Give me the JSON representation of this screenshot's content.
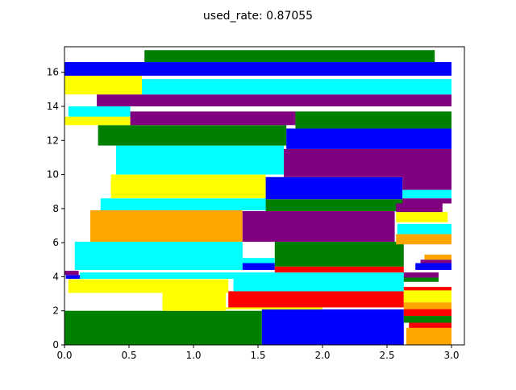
{
  "chart_data": {
    "type": "bar",
    "title": "used_rate: 0.87055",
    "xlabel": "",
    "ylabel": "",
    "xlim": [
      0,
      3.1
    ],
    "ylim": [
      0,
      17.5
    ],
    "grid": false,
    "x_ticks": [
      0.0,
      0.5,
      1.0,
      1.5,
      2.0,
      2.5,
      3.0
    ],
    "x_tick_labels": [
      "0.0",
      "0.5",
      "1.0",
      "1.5",
      "2.0",
      "2.5",
      "3.0"
    ],
    "y_ticks": [
      0,
      2,
      4,
      6,
      8,
      10,
      12,
      14,
      16
    ],
    "y_tick_labels": [
      "0",
      "2",
      "4",
      "6",
      "8",
      "10",
      "12",
      "14",
      "16"
    ],
    "colors": {
      "green": "#008000",
      "blue": "#0000ff",
      "yellow": "#ffff00",
      "cyan": "#00ffff",
      "purple": "#800080",
      "orange": "#ffa500",
      "red": "#ff0000"
    },
    "rectangles": [
      {
        "x0": 0.0,
        "x1": 1.53,
        "y0": 0.0,
        "y1": 2.0,
        "color": "green"
      },
      {
        "x0": 1.53,
        "x1": 2.63,
        "y0": 0.0,
        "y1": 2.08,
        "color": "blue"
      },
      {
        "x0": 0.76,
        "x1": 1.25,
        "y0": 2.0,
        "y1": 3.05,
        "color": "yellow"
      },
      {
        "x0": 1.25,
        "x1": 2.0,
        "y0": 2.08,
        "y1": 2.2,
        "color": "yellow"
      },
      {
        "x0": 1.27,
        "x1": 2.63,
        "y0": 2.2,
        "y1": 3.15,
        "color": "red"
      },
      {
        "x0": 0.03,
        "x1": 1.27,
        "y0": 3.05,
        "y1": 3.85,
        "color": "yellow"
      },
      {
        "x0": 1.31,
        "x1": 2.63,
        "y0": 3.15,
        "y1": 3.88,
        "color": "cyan"
      },
      {
        "x0": 0.12,
        "x1": 2.63,
        "y0": 3.88,
        "y1": 4.25,
        "color": "cyan"
      },
      {
        "x0": 0.01,
        "x1": 0.12,
        "y0": 3.88,
        "y1": 4.1,
        "color": "blue"
      },
      {
        "x0": 0.0,
        "x1": 0.11,
        "y0": 4.1,
        "y1": 4.35,
        "color": "purple"
      },
      {
        "x0": 0.08,
        "x1": 1.38,
        "y0": 4.4,
        "y1": 6.05,
        "color": "cyan"
      },
      {
        "x0": 1.38,
        "x1": 1.63,
        "y0": 4.4,
        "y1": 4.8,
        "color": "blue"
      },
      {
        "x0": 1.63,
        "x1": 2.63,
        "y0": 4.25,
        "y1": 4.6,
        "color": "red"
      },
      {
        "x0": 1.63,
        "x1": 2.63,
        "y0": 4.6,
        "y1": 6.05,
        "color": "green"
      },
      {
        "x0": 1.38,
        "x1": 1.63,
        "y0": 4.8,
        "y1": 5.1,
        "color": "cyan"
      },
      {
        "x0": 0.2,
        "x1": 1.38,
        "y0": 6.05,
        "y1": 7.9,
        "color": "orange"
      },
      {
        "x0": 1.38,
        "x1": 2.56,
        "y0": 6.05,
        "y1": 7.85,
        "color": "purple"
      },
      {
        "x0": 0.28,
        "x1": 1.56,
        "y0": 7.9,
        "y1": 8.6,
        "color": "cyan"
      },
      {
        "x0": 1.56,
        "x1": 2.63,
        "y0": 7.85,
        "y1": 8.55,
        "color": "green"
      },
      {
        "x0": 0.36,
        "x1": 1.56,
        "y0": 8.6,
        "y1": 10.0,
        "color": "yellow"
      },
      {
        "x0": 1.56,
        "x1": 2.62,
        "y0": 8.55,
        "y1": 9.85,
        "color": "blue"
      },
      {
        "x0": 0.4,
        "x1": 1.7,
        "y0": 10.0,
        "y1": 11.7,
        "color": "cyan"
      },
      {
        "x0": 1.7,
        "x1": 3.0,
        "y0": 9.85,
        "y1": 11.5,
        "color": "purple"
      },
      {
        "x0": 0.26,
        "x1": 1.72,
        "y0": 11.7,
        "y1": 12.9,
        "color": "green"
      },
      {
        "x0": 1.72,
        "x1": 3.0,
        "y0": 11.5,
        "y1": 12.7,
        "color": "blue"
      },
      {
        "x0": 1.79,
        "x1": 3.0,
        "y0": 12.7,
        "y1": 13.7,
        "color": "green"
      },
      {
        "x0": 0.0,
        "x1": 0.51,
        "y0": 12.9,
        "y1": 13.4,
        "color": "yellow"
      },
      {
        "x0": 0.51,
        "x1": 1.79,
        "y0": 12.9,
        "y1": 13.7,
        "color": "purple"
      },
      {
        "x0": 0.03,
        "x1": 0.51,
        "y0": 13.4,
        "y1": 14.0,
        "color": "cyan"
      },
      {
        "x0": 0.25,
        "x1": 3.0,
        "y0": 14.0,
        "y1": 14.7,
        "color": "purple"
      },
      {
        "x0": 0.0,
        "x1": 0.6,
        "y0": 14.7,
        "y1": 15.8,
        "color": "yellow"
      },
      {
        "x0": 0.6,
        "x1": 3.0,
        "y0": 14.7,
        "y1": 15.6,
        "color": "cyan"
      },
      {
        "x0": 0.0,
        "x1": 3.0,
        "y0": 15.8,
        "y1": 16.6,
        "color": "blue"
      },
      {
        "x0": 0.62,
        "x1": 2.87,
        "y0": 16.6,
        "y1": 17.3,
        "color": "green"
      },
      {
        "x0": 2.65,
        "x1": 3.0,
        "y0": 0.0,
        "y1": 1.0,
        "color": "orange"
      },
      {
        "x0": 2.67,
        "x1": 3.0,
        "y0": 1.0,
        "y1": 1.3,
        "color": "red"
      },
      {
        "x0": 2.63,
        "x1": 3.0,
        "y0": 1.3,
        "y1": 1.7,
        "color": "green"
      },
      {
        "x0": 2.63,
        "x1": 3.0,
        "y0": 1.7,
        "y1": 2.1,
        "color": "red"
      },
      {
        "x0": 2.63,
        "x1": 3.0,
        "y0": 2.1,
        "y1": 2.5,
        "color": "orange"
      },
      {
        "x0": 2.63,
        "x1": 3.0,
        "y0": 2.5,
        "y1": 3.2,
        "color": "yellow"
      },
      {
        "x0": 2.63,
        "x1": 3.0,
        "y0": 3.2,
        "y1": 3.4,
        "color": "red"
      },
      {
        "x0": 2.63,
        "x1": 2.9,
        "y0": 3.7,
        "y1": 3.95,
        "color": "green"
      },
      {
        "x0": 2.63,
        "x1": 2.9,
        "y0": 3.95,
        "y1": 4.25,
        "color": "purple"
      },
      {
        "x0": 2.72,
        "x1": 3.0,
        "y0": 4.4,
        "y1": 4.8,
        "color": "blue"
      },
      {
        "x0": 2.76,
        "x1": 3.0,
        "y0": 4.8,
        "y1": 5.0,
        "color": "purple"
      },
      {
        "x0": 2.79,
        "x1": 3.0,
        "y0": 5.0,
        "y1": 5.3,
        "color": "orange"
      },
      {
        "x0": 2.57,
        "x1": 3.0,
        "y0": 5.9,
        "y1": 6.5,
        "color": "orange"
      },
      {
        "x0": 2.58,
        "x1": 3.0,
        "y0": 6.5,
        "y1": 7.1,
        "color": "cyan"
      },
      {
        "x0": 2.57,
        "x1": 2.97,
        "y0": 7.2,
        "y1": 7.8,
        "color": "yellow"
      },
      {
        "x0": 2.57,
        "x1": 2.93,
        "y0": 7.8,
        "y1": 8.3,
        "color": "purple"
      },
      {
        "x0": 2.62,
        "x1": 3.0,
        "y0": 8.3,
        "y1": 8.6,
        "color": "purple"
      },
      {
        "x0": 2.62,
        "x1": 3.0,
        "y0": 8.6,
        "y1": 9.1,
        "color": "cyan"
      },
      {
        "x0": 2.62,
        "x1": 3.0,
        "y0": 9.1,
        "y1": 9.9,
        "color": "purple"
      }
    ]
  }
}
